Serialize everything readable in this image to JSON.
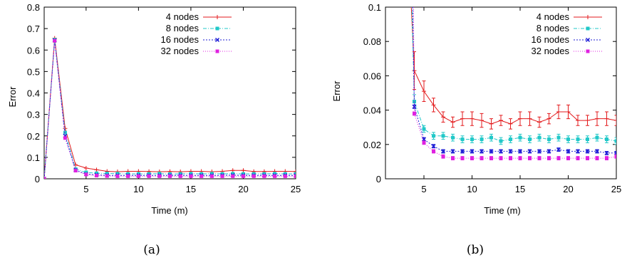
{
  "chart_data": [
    {
      "type": "line",
      "caption": "(a)",
      "xlabel": "Time (m)",
      "ylabel": "Error",
      "xlim": [
        1,
        25
      ],
      "ylim": [
        0,
        0.8
      ],
      "xticks": [
        5,
        10,
        15,
        20,
        25
      ],
      "yticks": [
        0,
        0.1,
        0.2,
        0.3,
        0.4,
        0.5,
        0.6,
        0.7,
        0.8
      ],
      "ytick_labels": [
        "0",
        "0.1",
        "0.2",
        "0.3",
        "0.4",
        "0.5",
        "0.6",
        "0.7",
        "0.8"
      ],
      "legend_position": "top-right",
      "grid": false,
      "series": [
        {
          "name": "4 nodes",
          "color": "#e31a1c",
          "marker": "plus",
          "dash": "",
          "x": [
            1,
            2,
            3,
            4,
            5,
            6,
            7,
            8,
            9,
            10,
            11,
            12,
            13,
            14,
            15,
            16,
            17,
            18,
            19,
            20,
            21,
            22,
            23,
            24,
            25
          ],
          "y": [
            0,
            0.655,
            0.235,
            0.065,
            0.05,
            0.042,
            0.035,
            0.033,
            0.035,
            0.035,
            0.034,
            0.033,
            0.034,
            0.033,
            0.035,
            0.035,
            0.033,
            0.035,
            0.039,
            0.039,
            0.034,
            0.034,
            0.035,
            0.035,
            0.034
          ]
        },
        {
          "name": "8 nodes",
          "color": "#21c8c8",
          "marker": "square",
          "dash": "5,2,1,2",
          "x": [
            1,
            2,
            3,
            4,
            5,
            6,
            7,
            8,
            9,
            10,
            11,
            12,
            13,
            14,
            15,
            16,
            17,
            18,
            19,
            20,
            21,
            22,
            23,
            24,
            25
          ],
          "y": [
            0,
            0.648,
            0.215,
            0.045,
            0.03,
            0.026,
            0.025,
            0.024,
            0.023,
            0.023,
            0.023,
            0.024,
            0.022,
            0.023,
            0.024,
            0.023,
            0.024,
            0.023,
            0.024,
            0.023,
            0.023,
            0.023,
            0.024,
            0.023,
            0.023
          ]
        },
        {
          "name": "16 nodes",
          "color": "#1f1fd6",
          "marker": "x",
          "dash": "2,2",
          "x": [
            1,
            2,
            3,
            4,
            5,
            6,
            7,
            8,
            9,
            10,
            11,
            12,
            13,
            14,
            15,
            16,
            17,
            18,
            19,
            20,
            21,
            22,
            23,
            24,
            25
          ],
          "y": [
            0,
            0.645,
            0.2,
            0.04,
            0.022,
            0.018,
            0.016,
            0.016,
            0.016,
            0.016,
            0.016,
            0.016,
            0.016,
            0.016,
            0.016,
            0.016,
            0.016,
            0.016,
            0.017,
            0.016,
            0.016,
            0.016,
            0.016,
            0.016,
            0.016
          ]
        },
        {
          "name": "32 nodes",
          "color": "#e021e0",
          "marker": "square",
          "dash": "1,2",
          "x": [
            1,
            2,
            3,
            4,
            5,
            6,
            7,
            8,
            9,
            10,
            11,
            12,
            13,
            14,
            15,
            16,
            17,
            18,
            19,
            20,
            21,
            22,
            23,
            24,
            25
          ],
          "y": [
            0,
            0.643,
            0.19,
            0.038,
            0.02,
            0.015,
            0.013,
            0.012,
            0.012,
            0.012,
            0.012,
            0.012,
            0.012,
            0.012,
            0.012,
            0.012,
            0.012,
            0.012,
            0.012,
            0.012,
            0.012,
            0.012,
            0.012,
            0.012,
            0.012
          ]
        }
      ]
    },
    {
      "type": "line",
      "caption": "(b)",
      "xlabel": "Time (m)",
      "ylabel": "Error",
      "xlim": [
        1,
        25
      ],
      "ylim": [
        0,
        0.1
      ],
      "xticks": [
        5,
        10,
        15,
        20,
        25
      ],
      "yticks": [
        0,
        0.02,
        0.04,
        0.06,
        0.08,
        0.1
      ],
      "ytick_labels": [
        "0",
        "0.02",
        "0.04",
        "0.06",
        "0.08",
        "0.1"
      ],
      "legend_position": "top-right",
      "grid": false,
      "series": [
        {
          "name": "4 nodes",
          "color": "#e31a1c",
          "marker": "plus",
          "dash": "",
          "x": [
            3.6,
            4,
            5,
            6,
            7,
            8,
            9,
            10,
            11,
            12,
            13,
            14,
            15,
            16,
            17,
            18,
            19,
            20,
            21,
            22,
            23,
            24,
            25
          ],
          "y": [
            0.11,
            0.063,
            0.051,
            0.043,
            0.036,
            0.033,
            0.035,
            0.035,
            0.034,
            0.032,
            0.034,
            0.032,
            0.035,
            0.035,
            0.033,
            0.035,
            0.039,
            0.039,
            0.034,
            0.034,
            0.035,
            0.035,
            0.034
          ],
          "err": [
            0,
            0.011,
            0.006,
            0.004,
            0.003,
            0.003,
            0.004,
            0.004,
            0.004,
            0.003,
            0.003,
            0.003,
            0.004,
            0.004,
            0.003,
            0.003,
            0.004,
            0.004,
            0.003,
            0.003,
            0.004,
            0.004,
            0.003
          ]
        },
        {
          "name": "8 nodes",
          "color": "#21c8c8",
          "marker": "square",
          "dash": "5,2,1,2",
          "x": [
            3.7,
            4,
            5,
            6,
            7,
            8,
            9,
            10,
            11,
            12,
            13,
            14,
            15,
            16,
            17,
            18,
            19,
            20,
            21,
            22,
            23,
            24,
            25
          ],
          "y": [
            0.11,
            0.045,
            0.029,
            0.025,
            0.025,
            0.024,
            0.023,
            0.023,
            0.023,
            0.024,
            0.022,
            0.023,
            0.024,
            0.023,
            0.024,
            0.023,
            0.024,
            0.023,
            0.023,
            0.023,
            0.024,
            0.023,
            0.022
          ],
          "err": [
            0,
            0.004,
            0.002,
            0.002,
            0.002,
            0.002,
            0.002,
            0.002,
            0.002,
            0.002,
            0.002,
            0.002,
            0.002,
            0.002,
            0.002,
            0.002,
            0.002,
            0.002,
            0.002,
            0.002,
            0.002,
            0.002,
            0.002
          ]
        },
        {
          "name": "16 nodes",
          "color": "#1f1fd6",
          "marker": "x",
          "dash": "2,2",
          "x": [
            3.8,
            4,
            5,
            6,
            7,
            8,
            9,
            10,
            11,
            12,
            13,
            14,
            15,
            16,
            17,
            18,
            19,
            20,
            21,
            22,
            23,
            24,
            25
          ],
          "y": [
            0.11,
            0.042,
            0.023,
            0.019,
            0.016,
            0.016,
            0.016,
            0.016,
            0.016,
            0.016,
            0.016,
            0.016,
            0.016,
            0.016,
            0.016,
            0.016,
            0.017,
            0.016,
            0.016,
            0.016,
            0.016,
            0.015,
            0.015
          ],
          "err": [
            0,
            0.001,
            0.001,
            0.001,
            0.001,
            0.001,
            0.001,
            0.001,
            0.001,
            0.001,
            0.001,
            0.001,
            0.001,
            0.001,
            0.001,
            0.001,
            0.001,
            0.001,
            0.001,
            0.001,
            0.001,
            0.001,
            0.001
          ]
        },
        {
          "name": "32 nodes",
          "color": "#e021e0",
          "marker": "square",
          "dash": "1,2",
          "x": [
            3.9,
            4,
            5,
            6,
            7,
            8,
            9,
            10,
            11,
            12,
            13,
            14,
            15,
            16,
            17,
            18,
            19,
            20,
            21,
            22,
            23,
            24,
            25
          ],
          "y": [
            0.11,
            0.038,
            0.021,
            0.016,
            0.013,
            0.012,
            0.012,
            0.012,
            0.012,
            0.012,
            0.012,
            0.012,
            0.012,
            0.012,
            0.012,
            0.012,
            0.012,
            0.012,
            0.012,
            0.012,
            0.012,
            0.012,
            0.013
          ],
          "err": [
            0,
            0.001,
            0.001,
            0.001,
            0.001,
            0.001,
            0.001,
            0.001,
            0.001,
            0.001,
            0.001,
            0.001,
            0.001,
            0.001,
            0.001,
            0.001,
            0.001,
            0.001,
            0.001,
            0.001,
            0.001,
            0.001,
            0.001
          ]
        }
      ]
    }
  ]
}
